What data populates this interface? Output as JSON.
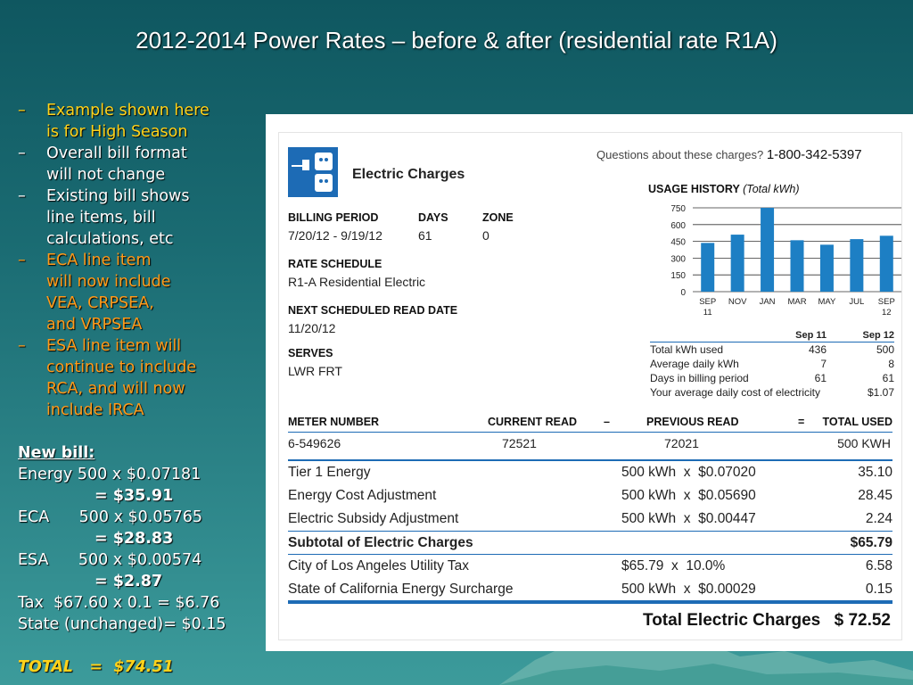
{
  "slide": {
    "title": "2012-2014 Power Rates – before & after (residential rate R1A)"
  },
  "bullets": [
    {
      "dash": "–",
      "lines": [
        "Example shown here",
        "is for High Season"
      ],
      "color": "yellow"
    },
    {
      "dash": "–",
      "lines": [
        "Overall bill format",
        "will not change"
      ],
      "color": "white"
    },
    {
      "dash": "–",
      "lines": [
        "Existing bill shows",
        "line items, bill",
        "calculations, etc"
      ],
      "color": "white"
    },
    {
      "dash": "–",
      "lines": [
        "ECA line item",
        "will now include",
        "VEA, CRPSEA,",
        "and VRPSEA"
      ],
      "color": "orange"
    },
    {
      "dash": "–",
      "lines": [
        "ESA line item will",
        "continue to include",
        "RCA, and will now",
        "include IRCA"
      ],
      "color": "orange"
    }
  ],
  "new_bill": {
    "heading": "New bill:",
    "energy_line": "Energy 500 x $0.07181",
    "energy_result": "= $35.91",
    "eca_line": "ECA      500 x $0.05765",
    "eca_result": "= $28.83",
    "esa_line": "ESA      500 x $0.00574",
    "esa_result": "= $2.87",
    "tax_line": "Tax  $67.60 x 0.1 = $6.76",
    "state_line": "State (unchanged)= $0.15",
    "total_line": "TOTAL   =  $74.51"
  },
  "bill": {
    "heading": "Electric Charges",
    "questions_label": "Questions about these charges?",
    "phone": "1-800-342-5397",
    "billing_period_label": "BILLING PERIOD",
    "billing_period": "7/20/12 - 9/19/12",
    "days_label": "DAYS",
    "days": "61",
    "zone_label": "ZONE",
    "zone": "0",
    "rate_schedule_label": "RATE SCHEDULE",
    "rate_schedule": "R1-A Residential Electric",
    "next_read_label": "NEXT SCHEDULED READ DATE",
    "next_read": "11/20/12",
    "serves_label": "SERVES",
    "serves": "LWR FRT",
    "usage_title": "USAGE HISTORY",
    "usage_subtitle": "(Total kWh)"
  },
  "chart_data": {
    "type": "bar",
    "title": "USAGE HISTORY (Total kWh)",
    "categories": [
      "SEP 11",
      "NOV",
      "JAN",
      "MAR",
      "MAY",
      "JUL",
      "SEP 12"
    ],
    "category_lines": [
      [
        "SEP",
        "11"
      ],
      [
        "NOV"
      ],
      [
        "JAN"
      ],
      [
        "MAR"
      ],
      [
        "MAY"
      ],
      [
        "JUL"
      ],
      [
        "SEP",
        "12"
      ]
    ],
    "values": [
      436,
      510,
      750,
      460,
      420,
      470,
      500
    ],
    "yticks": [
      0,
      150,
      300,
      450,
      600,
      750
    ],
    "ylim": [
      0,
      750
    ],
    "grid": true,
    "bar_color": "#1d7fc4"
  },
  "stats": {
    "col_headers": [
      "Sep 11",
      "Sep 12"
    ],
    "rows": [
      {
        "label": "Total kWh used",
        "a": "436",
        "b": "500"
      },
      {
        "label": "Average daily kWh",
        "a": "7",
        "b": "8"
      },
      {
        "label": "Days in billing period",
        "a": "61",
        "b": "61"
      },
      {
        "label": "Your average daily cost of electricity",
        "a": "",
        "b": "$1.07"
      }
    ]
  },
  "meter": {
    "headers": {
      "meter": "METER NUMBER",
      "current": "CURRENT READ",
      "minus": "–",
      "previous": "PREVIOUS READ",
      "equals": "=",
      "total": "TOTAL USED"
    },
    "values": {
      "meter": "6-549626",
      "current": "72521",
      "previous": "72021",
      "total": "500 KWH"
    }
  },
  "line_items": [
    {
      "desc": "Tier 1 Energy",
      "rate": "500 kWh  x  $0.07020",
      "amount": "35.10"
    },
    {
      "desc": "Energy Cost Adjustment",
      "rate": "500 kWh  x  $0.05690",
      "amount": "28.45"
    },
    {
      "desc": "Electric Subsidy Adjustment",
      "rate": "500 kWh  x  $0.00447",
      "amount": "2.24"
    }
  ],
  "subtotal": {
    "desc": "Subtotal of Electric Charges",
    "amount": "$65.79"
  },
  "tax_items": [
    {
      "desc": "City of Los Angeles Utility Tax",
      "rate": "$65.79  x  10.0%",
      "amount": "6.58"
    },
    {
      "desc": "State of California Energy Surcharge",
      "rate": "500 kWh  x  $0.00029",
      "amount": "0.15"
    }
  ],
  "total": {
    "label": "Total Electric Charges",
    "amount": "$ 72.52"
  }
}
